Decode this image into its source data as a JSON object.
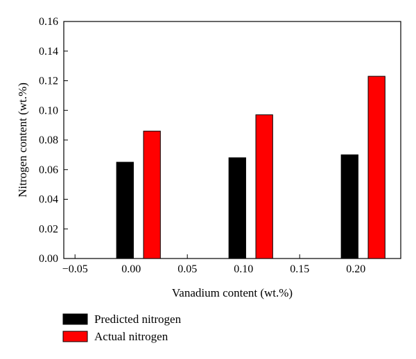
{
  "chart_data": {
    "type": "bar",
    "title": "",
    "xlabel": "Vanadium content (wt.%)",
    "ylabel": "Nitrogen content (wt.%)",
    "xlim": [
      -0.06,
      0.24
    ],
    "ylim": [
      0,
      0.16
    ],
    "xticks": [
      "−0.05",
      "0.00",
      "0.05",
      "0.10",
      "0.15",
      "0.20"
    ],
    "yticks": [
      "0.00",
      "0.02",
      "0.04",
      "0.06",
      "0.08",
      "0.10",
      "0.12",
      "0.14",
      "0.16"
    ],
    "categories": [
      0.0,
      0.1,
      0.2
    ],
    "series": [
      {
        "name": "Predicted nitrogen",
        "color": "#000000",
        "values": [
          0.065,
          0.068,
          0.07
        ]
      },
      {
        "name": "Actual nitrogen",
        "color": "#ff0000",
        "values": [
          0.086,
          0.097,
          0.123
        ]
      }
    ],
    "grid": false,
    "legend_position": "bottom-left"
  }
}
